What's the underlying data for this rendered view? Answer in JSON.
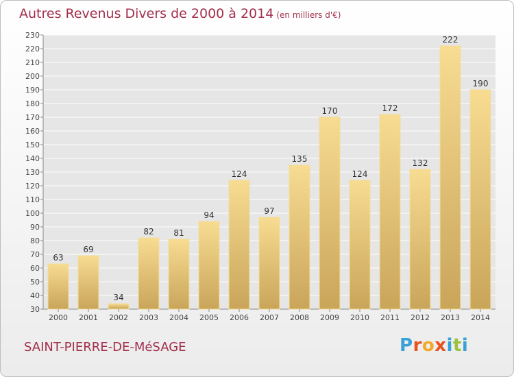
{
  "title": "Autres Revenus Divers de 2000 à 2014",
  "title_unit": "(en milliers d'€)",
  "place": "SAINT-PIERRE-DE-MéSAGE",
  "logo": {
    "letters": [
      "P",
      "r",
      "o",
      "x",
      "i",
      "t",
      "i"
    ],
    "colors": [
      "#3aa0d8",
      "#e8521c",
      "#f2a72a",
      "#e8521c",
      "#3aa0d8",
      "#9bc23c",
      "#3aa0d8"
    ]
  },
  "colors": {
    "bar": "#f0cf7a",
    "bar_dark": "#e3b85a",
    "title": "#a32f4d"
  },
  "chart_data": {
    "type": "bar",
    "title": "Autres Revenus Divers de 2000 à 2014",
    "subtitle": "(en milliers d'€)",
    "categories": [
      "2000",
      "2001",
      "2002",
      "2003",
      "2004",
      "2005",
      "2006",
      "2007",
      "2008",
      "2009",
      "2010",
      "2011",
      "2012",
      "2013",
      "2014"
    ],
    "values": [
      63,
      69,
      34,
      82,
      81,
      94,
      124,
      97,
      135,
      170,
      124,
      172,
      132,
      222,
      190
    ],
    "ylim": [
      30,
      230
    ],
    "yticks": [
      30,
      40,
      50,
      60,
      70,
      80,
      90,
      100,
      110,
      120,
      130,
      140,
      150,
      160,
      170,
      180,
      190,
      200,
      210,
      220,
      230
    ],
    "grid": true,
    "xlabel": "",
    "ylabel": ""
  }
}
